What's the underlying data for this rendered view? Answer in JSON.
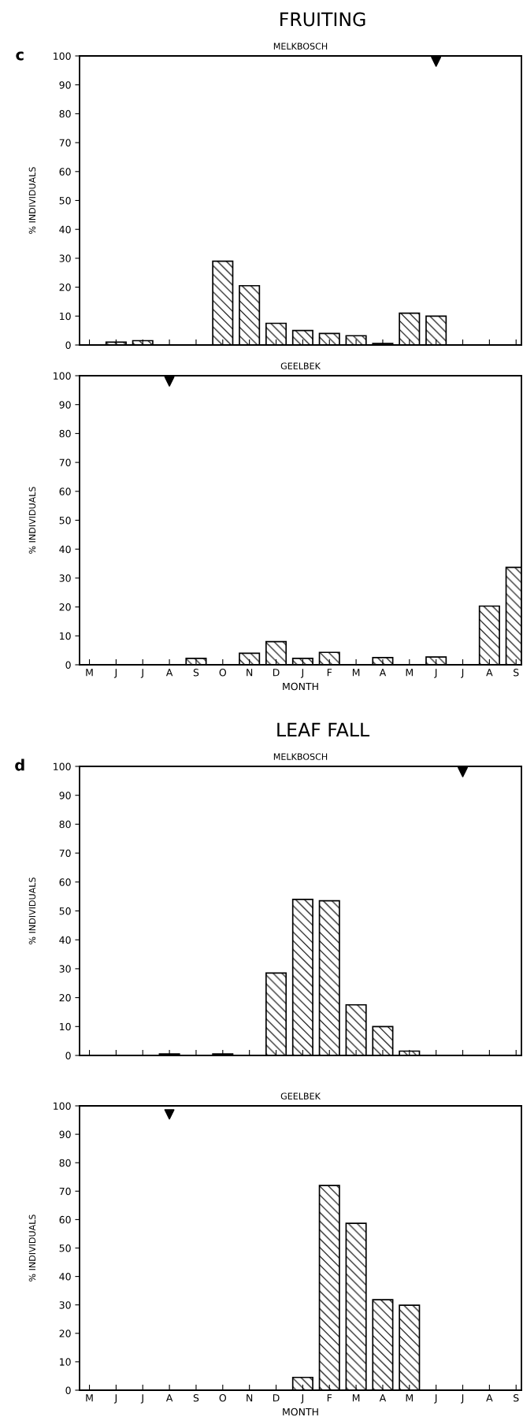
{
  "chart_data": [
    {
      "type": "bar",
      "title": "FRUITING",
      "subtitle": "MELKBOSCH",
      "ylabel": "% INDIVIDUALS",
      "annotations": [
        "c"
      ],
      "categories": [
        null,
        null,
        null,
        null,
        null,
        null,
        null,
        null,
        null,
        null,
        null,
        null,
        null,
        null,
        null,
        null,
        null
      ],
      "ylim": [
        0,
        100
      ],
      "yticks": [
        0,
        10,
        20,
        30,
        40,
        50,
        60,
        70,
        80,
        90,
        100
      ],
      "series": [
        {
          "color": "#000000",
          "values": [
            0,
            1,
            1.5,
            0,
            0,
            29,
            20.5,
            7.5,
            5,
            4,
            3.2,
            0.5,
            11,
            10,
            0,
            0,
            0
          ]
        },
        {
          "type": "scatter",
          "marker": "triangle",
          "color": "#000000",
          "values": [
            null,
            null,
            null,
            null,
            null,
            null,
            null,
            null,
            null,
            null,
            null,
            null,
            null,
            98,
            null,
            null,
            null
          ]
        }
      ]
    },
    {
      "type": "bar",
      "title": "GEELBEK",
      "xlabel": "MONTH",
      "ylabel": "% INDIVIDUALS",
      "categories": [
        "M",
        "J",
        "J",
        "A",
        "S",
        "O",
        "N",
        "D",
        "J",
        "F",
        "M",
        "A",
        "M",
        "J",
        "J",
        "A",
        "S"
      ],
      "ylim": [
        0,
        100
      ],
      "yticks": [
        0,
        10,
        20,
        30,
        40,
        50,
        60,
        70,
        80,
        90,
        100
      ],
      "series": [
        {
          "color": "#000000",
          "values": [
            0,
            0,
            0,
            0,
            2.2,
            0,
            4,
            8,
            2.2,
            4.3,
            0,
            2.5,
            0,
            2.7,
            0,
            20.3,
            33.7
          ]
        },
        {
          "type": "scatter",
          "marker": "triangle",
          "color": "#000000",
          "values": [
            null,
            null,
            null,
            98,
            null,
            null,
            null,
            null,
            null,
            null,
            null,
            null,
            null,
            null,
            null,
            null,
            null
          ]
        }
      ]
    },
    {
      "type": "bar",
      "title": "LEAF FALL",
      "subtitle": "MELKBOSCH",
      "ylabel": "% INDIVIDUALS",
      "annotations": [
        "d"
      ],
      "categories": [
        null,
        null,
        null,
        null,
        null,
        null,
        null,
        null,
        null,
        null,
        null,
        null,
        null,
        null,
        null,
        null,
        null
      ],
      "ylim": [
        0,
        100
      ],
      "yticks": [
        0,
        10,
        20,
        30,
        40,
        50,
        60,
        70,
        80,
        90,
        100
      ],
      "series": [
        {
          "color": "#000000",
          "values": [
            0,
            0,
            0,
            0.5,
            0,
            0.5,
            0,
            28.5,
            54,
            53.5,
            17.5,
            10,
            1.5,
            0,
            0,
            0,
            0
          ]
        },
        {
          "type": "scatter",
          "marker": "triangle",
          "color": "#000000",
          "values": [
            null,
            null,
            null,
            null,
            null,
            null,
            null,
            null,
            null,
            null,
            null,
            null,
            null,
            null,
            98,
            null,
            null
          ]
        }
      ]
    },
    {
      "type": "bar",
      "title": "GEELBEK",
      "xlabel": "MONTH",
      "ylabel": "% INDIVIDUALS",
      "categories": [
        "M",
        "J",
        "J",
        "A",
        "S",
        "O",
        "N",
        "D",
        "J",
        "F",
        "M",
        "A",
        "M",
        "J",
        "J",
        "A",
        "S"
      ],
      "ylim": [
        0,
        100
      ],
      "yticks": [
        0,
        10,
        20,
        30,
        40,
        50,
        60,
        70,
        80,
        90,
        100
      ],
      "series": [
        {
          "color": "#000000",
          "values": [
            0,
            0,
            0,
            0,
            0,
            0,
            0,
            0,
            4.5,
            72,
            58.7,
            31.8,
            29.9,
            0,
            0,
            0,
            0
          ]
        },
        {
          "type": "scatter",
          "marker": "triangle",
          "color": "#000000",
          "values": [
            null,
            null,
            null,
            97,
            null,
            null,
            null,
            null,
            null,
            null,
            null,
            null,
            null,
            null,
            null,
            null,
            null
          ]
        }
      ]
    }
  ]
}
